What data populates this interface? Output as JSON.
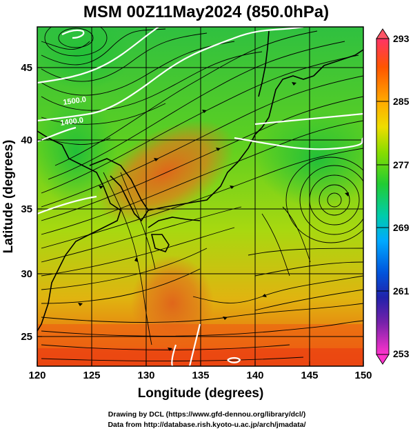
{
  "title": "MSM 00Z11May2024 (850.0hPa)",
  "x_axis": {
    "label": "Longitude (degrees)",
    "ticks": [
      "120",
      "125",
      "130",
      "135",
      "140",
      "145",
      "150"
    ]
  },
  "y_axis": {
    "label": "Latitude  (degrees)",
    "ticks": [
      "45",
      "40",
      "35",
      "30",
      "25"
    ]
  },
  "colorbar": {
    "ticks": [
      "293",
      "285",
      "277",
      "269",
      "261",
      "253"
    ],
    "colors": [
      "#ff3366",
      "#ff5500",
      "#ffaa00",
      "#eedd00",
      "#88dd00",
      "#22cc33",
      "#00ccaa",
      "#00aaff",
      "#0055dd",
      "#2222aa",
      "#7722aa",
      "#ff33cc"
    ]
  },
  "contour_labels": [
    "1500.0",
    "1400.0"
  ],
  "credits": {
    "line1": "Drawing by DCL (https://www.gfd-dennou.org/library/dcl/)",
    "line2": "Data from http://database.rish.kyoto-u.ac.jp/arch/jmadata/"
  }
}
